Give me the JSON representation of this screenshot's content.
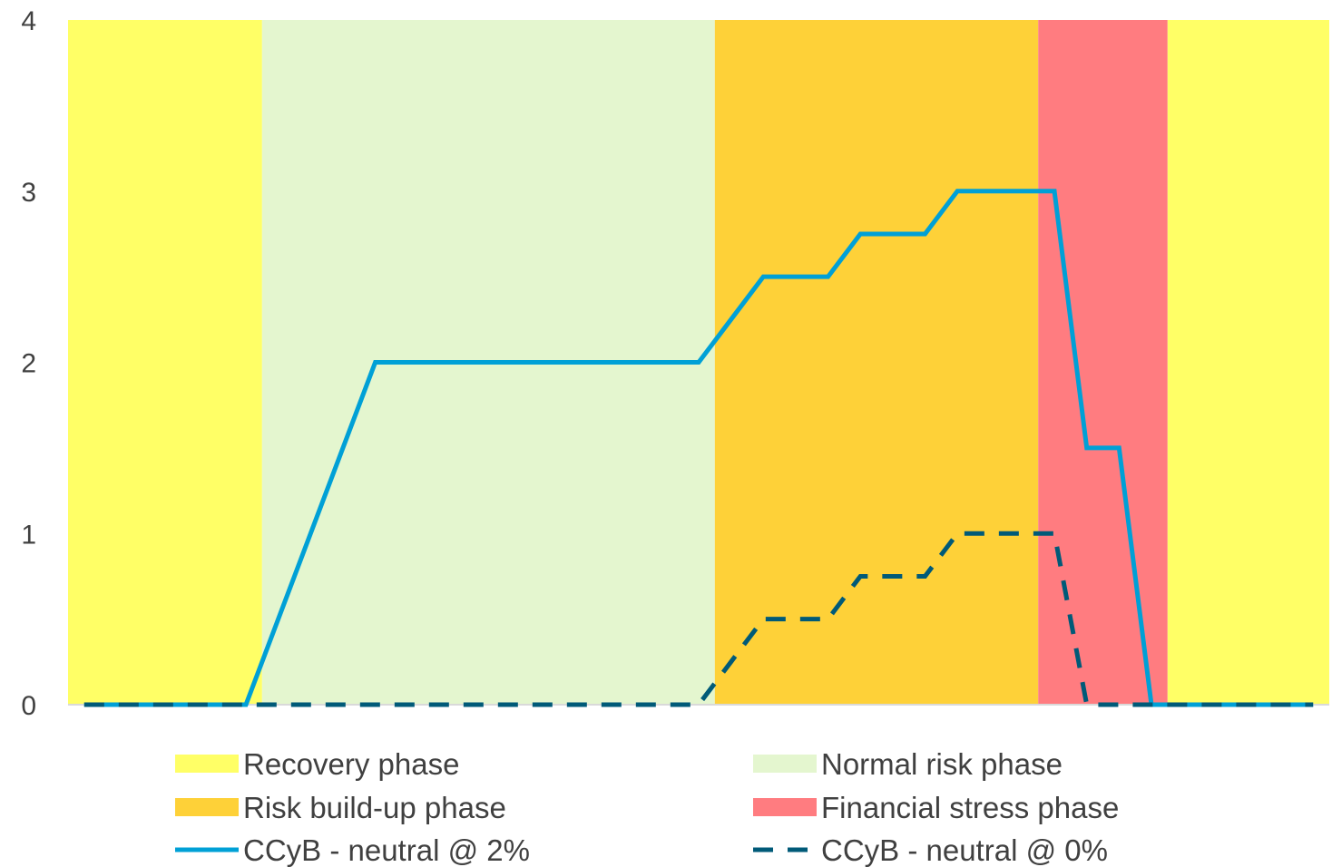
{
  "chart_data": {
    "type": "line",
    "title": "",
    "xlabel": "",
    "ylabel": "",
    "ylim": [
      0,
      4
    ],
    "yticks": [
      "0",
      "1",
      "2",
      "3",
      "4"
    ],
    "grid": false,
    "legend_placement": "bottom",
    "x": [
      0,
      1,
      2,
      3,
      4,
      5,
      6,
      7,
      8,
      9,
      10,
      11,
      12,
      13,
      14,
      15,
      16,
      17,
      18,
      19,
      20,
      21,
      22,
      23,
      24,
      25,
      26,
      27,
      28,
      29,
      30,
      31,
      32,
      33,
      34,
      35,
      36,
      37,
      38
    ],
    "phases": [
      {
        "name": "Recovery phase",
        "start": -0.5,
        "end": 5.5,
        "color": "#ffff66"
      },
      {
        "name": "Normal risk phase",
        "start": 5.5,
        "end": 19.5,
        "color": "#e4f6cf"
      },
      {
        "name": "Risk build-up phase",
        "start": 19.5,
        "end": 29.5,
        "color": "#fed138"
      },
      {
        "name": "Financial stress phase",
        "start": 29.5,
        "end": 33.5,
        "color": "#ff7c80"
      },
      {
        "name": "Recovery phase",
        "start": 33.5,
        "end": 38.5,
        "color": "#ffff66"
      }
    ],
    "series": [
      {
        "name": "CCyB - neutral @ 2%",
        "color": "#00a0d6",
        "style": "solid",
        "values": [
          0,
          0,
          0,
          0,
          0,
          0,
          0.5,
          1,
          1.5,
          2,
          2,
          2,
          2,
          2,
          2,
          2,
          2,
          2,
          2,
          2,
          2.25,
          2.5,
          2.5,
          2.5,
          2.75,
          2.75,
          2.75,
          3,
          3,
          3,
          3,
          1.5,
          1.5,
          0,
          0,
          0,
          0,
          0,
          0
        ]
      },
      {
        "name": "CCyB - neutral @ 0%",
        "color": "#005a78",
        "style": "dashed",
        "values": [
          0,
          0,
          0,
          0,
          0,
          0,
          0,
          0,
          0,
          0,
          0,
          0,
          0,
          0,
          0,
          0,
          0,
          0,
          0,
          0,
          0.25,
          0.5,
          0.5,
          0.5,
          0.75,
          0.75,
          0.75,
          1,
          1,
          1,
          1,
          0,
          0,
          0,
          0,
          0,
          0,
          0,
          0
        ]
      }
    ],
    "legend": [
      {
        "label": "Recovery phase",
        "kind": "swatch",
        "color": "#ffff66"
      },
      {
        "label": "Normal risk phase",
        "kind": "swatch",
        "color": "#e4f6cf"
      },
      {
        "label": "Risk build-up phase",
        "kind": "swatch",
        "color": "#fed138"
      },
      {
        "label": "Financial stress phase",
        "kind": "swatch",
        "color": "#ff7c80"
      },
      {
        "label": "CCyB - neutral @ 2%",
        "kind": "line",
        "color": "#00a0d6"
      },
      {
        "label": "CCyB - neutral @ 0%",
        "kind": "dashed",
        "color": "#005a78"
      }
    ]
  }
}
